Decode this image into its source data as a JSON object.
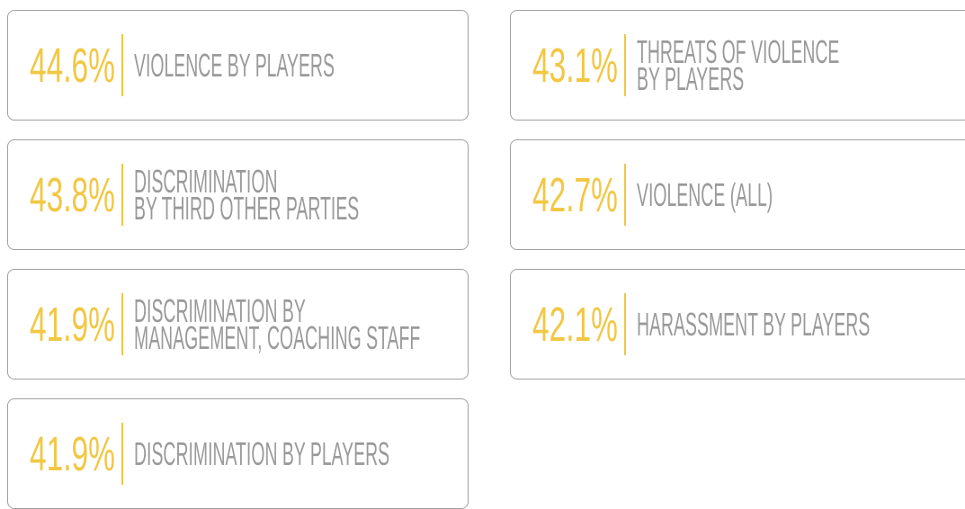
{
  "cards": [
    {
      "value": "44.6%",
      "lines": [
        "VIOLENCE BY PLAYERS"
      ]
    },
    {
      "value": "43.1%",
      "lines": [
        "THREATS OF VIOLENCE",
        "BY PLAYERS"
      ]
    },
    {
      "value": "43.8%",
      "lines": [
        "DISCRIMINATION",
        "BY THIRD OTHER PARTIES"
      ]
    },
    {
      "value": "42.7%",
      "lines": [
        "VIOLENCE (ALL)"
      ]
    },
    {
      "value": "41.9%",
      "lines": [
        "DISCRIMINATION BY",
        " MANAGEMENT, COACHING STAFF"
      ]
    },
    {
      "value": "42.1%",
      "lines": [
        "HARASSMENT BY PLAYERS"
      ]
    },
    {
      "value": "41.9%",
      "lines": [
        "DISCRIMINATION BY PLAYERS"
      ]
    }
  ]
}
